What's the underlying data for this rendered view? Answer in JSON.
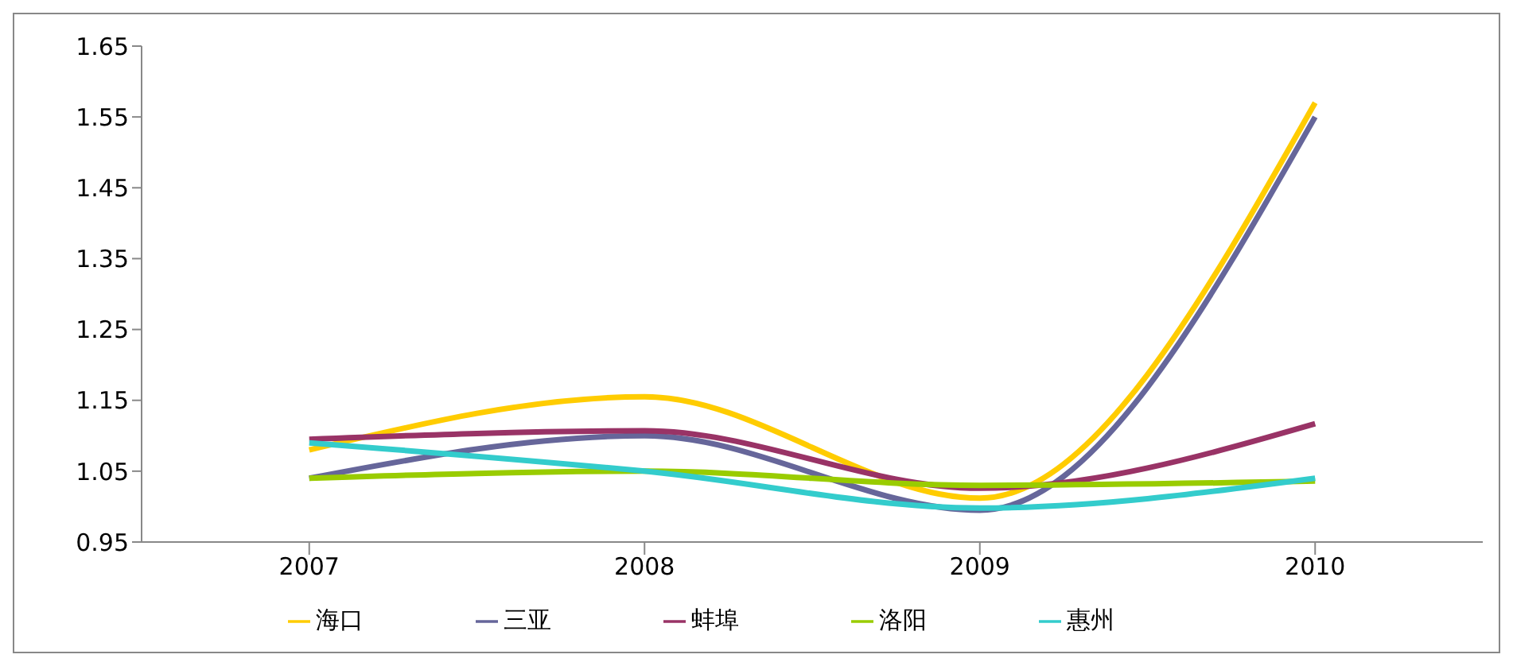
{
  "chart_data": {
    "type": "line",
    "categories": [
      "2007",
      "2008",
      "2009",
      "2010"
    ],
    "series": [
      {
        "name": "海口",
        "color": "#ffcc00",
        "values": [
          1.08,
          1.155,
          1.012,
          1.57
        ]
      },
      {
        "name": "三亚",
        "color": "#66669a",
        "values": [
          1.04,
          1.1,
          0.995,
          1.55
        ]
      },
      {
        "name": "蚌埠",
        "color": "#993366",
        "values": [
          1.095,
          1.107,
          1.026,
          1.117
        ]
      },
      {
        "name": "洛阳",
        "color": "#99cc00",
        "values": [
          1.04,
          1.05,
          1.03,
          1.036
        ]
      },
      {
        "name": "惠州",
        "color": "#33cccc",
        "values": [
          1.09,
          1.05,
          0.998,
          1.04
        ]
      }
    ],
    "ylim": [
      0.95,
      1.65
    ],
    "yticks": [
      0.95,
      1.05,
      1.15,
      1.25,
      1.35,
      1.45,
      1.55,
      1.65
    ],
    "grid": false,
    "legend": "bottom",
    "marker": "none",
    "line_style": "solid"
  }
}
